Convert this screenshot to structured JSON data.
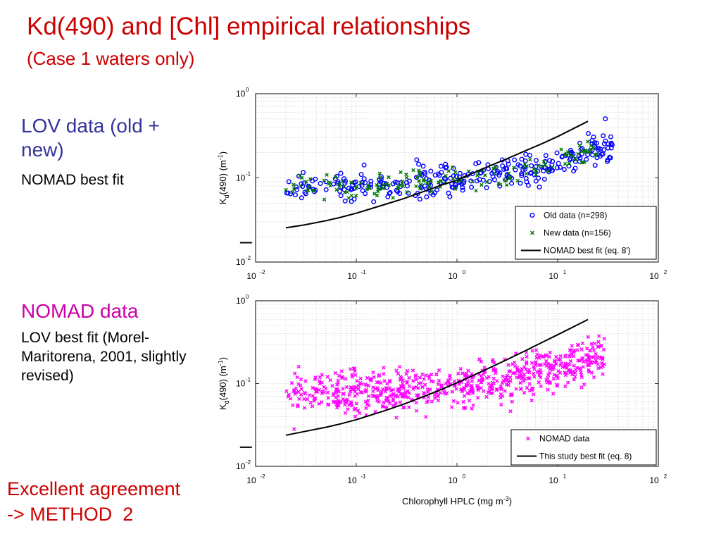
{
  "slide": {
    "title": "Kd(490) and [Chl] empirical relationships",
    "subtitle": "(Case 1 waters only)",
    "lov_heading": "LOV data (old + new)",
    "lov_fit": "NOMAD best fit",
    "nomad_heading": "NOMAD data",
    "nomad_fit": "LOV best fit (Morel-Maritorena, 2001, slightly revised)",
    "conclusion_line1": "Excellent agreement",
    "conclusion_line2": "-> METHOD  2"
  },
  "colors": {
    "title": "#cc0000",
    "lov_heading": "#333399",
    "nomad_heading": "#cc00aa",
    "old_data": "#0000ff",
    "new_data": "#007700",
    "nomad_data": "#ff00ff",
    "fit_line": "#000000"
  },
  "chart_data": [
    {
      "type": "scatter",
      "xscale": "log",
      "yscale": "log",
      "xlim": [
        0.01,
        100
      ],
      "ylim": [
        0.01,
        1
      ],
      "grid": true,
      "legend_position": "bottom-right",
      "xlabel": "",
      "ylabel": "K_d(490) (m^-1)",
      "ylabel_main": "K",
      "ylabel_sub": "d",
      "ylabel_rest": "(490) (m",
      "ylabel_sup": "-1",
      "ylabel_close": ")",
      "xticks": [
        {
          "value": 0.01,
          "base": "10",
          "exp": "-2"
        },
        {
          "value": 0.1,
          "base": "10",
          "exp": "-1"
        },
        {
          "value": 1,
          "base": "10",
          "exp": "0"
        },
        {
          "value": 10,
          "base": "10",
          "exp": "1"
        },
        {
          "value": 100,
          "base": "10",
          "exp": "2"
        }
      ],
      "yticks": [
        {
          "value": 0.01,
          "base": "10",
          "exp": "-2"
        },
        {
          "value": 0.1,
          "base": "10",
          "exp": "-1"
        },
        {
          "value": 1,
          "base": "10",
          "exp": "0"
        }
      ],
      "series": [
        {
          "name": "Old data (n=298)",
          "marker": "circle",
          "color": "#0000ff",
          "count": 298,
          "x_range": [
            0.02,
            35
          ],
          "center": {
            "a": 0.0166,
            "b": 0.0773,
            "c": 0.6559
          },
          "spread": 0.09,
          "seed": 7
        },
        {
          "name": "New data (n=156)",
          "marker": "cross",
          "color": "#007700",
          "count": 156,
          "x_range": [
            0.02,
            25
          ],
          "center": {
            "a": 0.0166,
            "b": 0.0773,
            "c": 0.6559
          },
          "spread": 0.08,
          "seed": 19
        },
        {
          "name": "NOMAD best fit (eq. 8')",
          "marker": "line",
          "color": "#000000",
          "x": [
            0.02,
            0.03,
            0.05,
            0.07,
            0.1,
            0.2,
            0.3,
            0.5,
            0.7,
            1,
            2,
            3,
            5,
            7,
            10,
            20
          ],
          "y": [
            0.0255,
            0.0275,
            0.031,
            0.034,
            0.038,
            0.049,
            0.057,
            0.071,
            0.082,
            0.094,
            0.135,
            0.165,
            0.215,
            0.255,
            0.31,
            0.47
          ]
        }
      ],
      "annotations": [
        {
          "type": "segment",
          "x1": 0.007,
          "x2": 0.0092,
          "y": 0.017
        }
      ]
    },
    {
      "type": "scatter",
      "xscale": "log",
      "yscale": "log",
      "xlim": [
        0.01,
        100
      ],
      "ylim": [
        0.01,
        1
      ],
      "grid": true,
      "legend_position": "bottom-right",
      "xlabel": "Chlorophyll HPLC (mg m^-3)",
      "xlabel_main": "Chlorophyll HPLC (mg m",
      "xlabel_sup": "-3",
      "xlabel_close": ")",
      "ylabel": "K_d(490) (m^-1)",
      "ylabel_main": "K",
      "ylabel_sub": "d",
      "ylabel_rest": "(490) (m",
      "ylabel_sup": "-1",
      "ylabel_close": ")",
      "xticks": [
        {
          "value": 0.01,
          "base": "10",
          "exp": "-2"
        },
        {
          "value": 0.1,
          "base": "10",
          "exp": "-1"
        },
        {
          "value": 1,
          "base": "10",
          "exp": "0"
        },
        {
          "value": 10,
          "base": "10",
          "exp": "1"
        },
        {
          "value": 100,
          "base": "10",
          "exp": "2"
        }
      ],
      "yticks": [
        {
          "value": 0.01,
          "base": "10",
          "exp": "-2"
        },
        {
          "value": 0.1,
          "base": "10",
          "exp": "-1"
        },
        {
          "value": 1,
          "base": "10",
          "exp": "0"
        }
      ],
      "series": [
        {
          "name": "NOMAD data",
          "marker": "cross",
          "color": "#ff00ff",
          "count": 700,
          "x_range": [
            0.02,
            30
          ],
          "center": {
            "a": 0.0166,
            "b": 0.0773,
            "c": 0.6559
          },
          "spread": 0.13,
          "seed": 31
        },
        {
          "name": "This study best fit (eq. 8)",
          "marker": "line",
          "color": "#000000",
          "x": [
            0.02,
            0.03,
            0.05,
            0.07,
            0.1,
            0.2,
            0.3,
            0.5,
            0.7,
            1,
            2,
            3,
            5,
            7,
            10,
            20
          ],
          "y": [
            0.0238,
            0.0262,
            0.0297,
            0.0326,
            0.0366,
            0.0478,
            0.0568,
            0.0719,
            0.085,
            0.1022,
            0.1502,
            0.1896,
            0.2564,
            0.3138,
            0.3892,
            0.5943
          ]
        }
      ],
      "annotations": [
        {
          "type": "segment",
          "x1": 0.007,
          "x2": 0.0092,
          "y": 0.017
        }
      ]
    }
  ]
}
